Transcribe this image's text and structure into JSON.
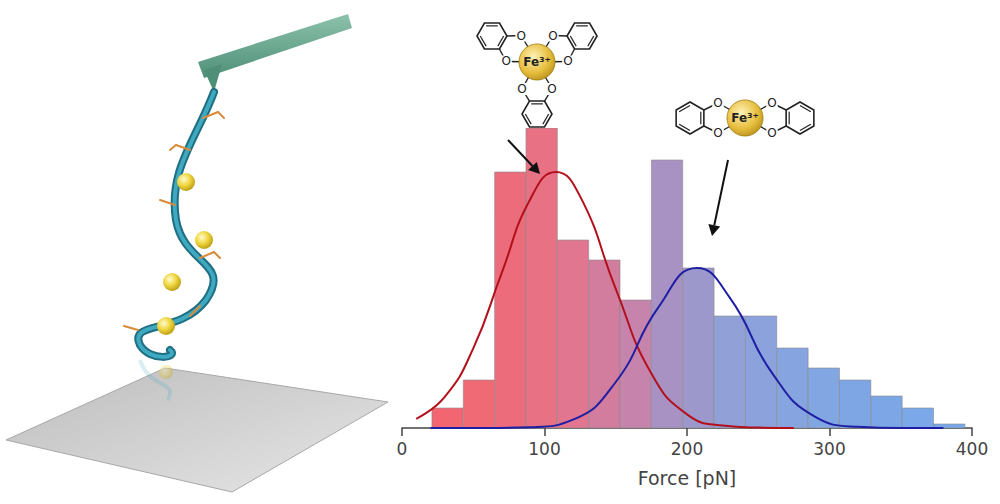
{
  "chart_data": {
    "type": "histogram",
    "xlabel": "Force [pN]",
    "bins": [
      21,
      43,
      65,
      87,
      109,
      131,
      153,
      175,
      197,
      219,
      241,
      263,
      285,
      307,
      329,
      351,
      373,
      395
    ],
    "counts": [
      5,
      12,
      64,
      75,
      47,
      42,
      32,
      67,
      40,
      28,
      28,
      20,
      15,
      12,
      8,
      5,
      1
    ],
    "colors": [
      "#f26672",
      "#f06a76",
      "#ec6c7c",
      "#e87284",
      "#e07690",
      "#d27c9e",
      "#c684ac",
      "#a892c4",
      "#9c98cc",
      "#92a0d8",
      "#8ca2dc",
      "#86a4e0",
      "#82a6e2",
      "#7ea6e4",
      "#7ca6e6",
      "#7aa8e8",
      "#78a8ea"
    ],
    "xlim": [
      0,
      400
    ],
    "xticks": [
      0,
      100,
      200,
      300,
      400
    ],
    "ylim": [
      0,
      75
    ],
    "tick_labels": "x",
    "grid": false,
    "series": [
      {
        "type": "line",
        "color": "#b3101c",
        "x": [
          10,
          30,
          50,
          70,
          90,
          108,
          125,
          150,
          175,
          200,
          225,
          250,
          275
        ],
        "values": [
          2.3,
          7.8,
          19.9,
          38.8,
          57.2,
          64,
          57.9,
          34.8,
          13.6,
          3.4,
          0.6,
          0.1,
          0
        ]
      },
      {
        "type": "line",
        "color": "#1f1fa3",
        "x": [
          20,
          60,
          90,
          120,
          150,
          180,
          207,
          230,
          260,
          290,
          320,
          350,
          380
        ],
        "values": [
          0,
          0,
          0.2,
          2.1,
          11.5,
          30.2,
          40,
          32.6,
          13.6,
          2.8,
          0.3,
          0,
          0
        ]
      }
    ],
    "annotations": [
      {
        "text": "Fe³⁺",
        "atom": "O",
        "ligands": 3
      },
      {
        "text": "Fe³⁺",
        "atom": "O",
        "ligands": 2
      }
    ]
  }
}
